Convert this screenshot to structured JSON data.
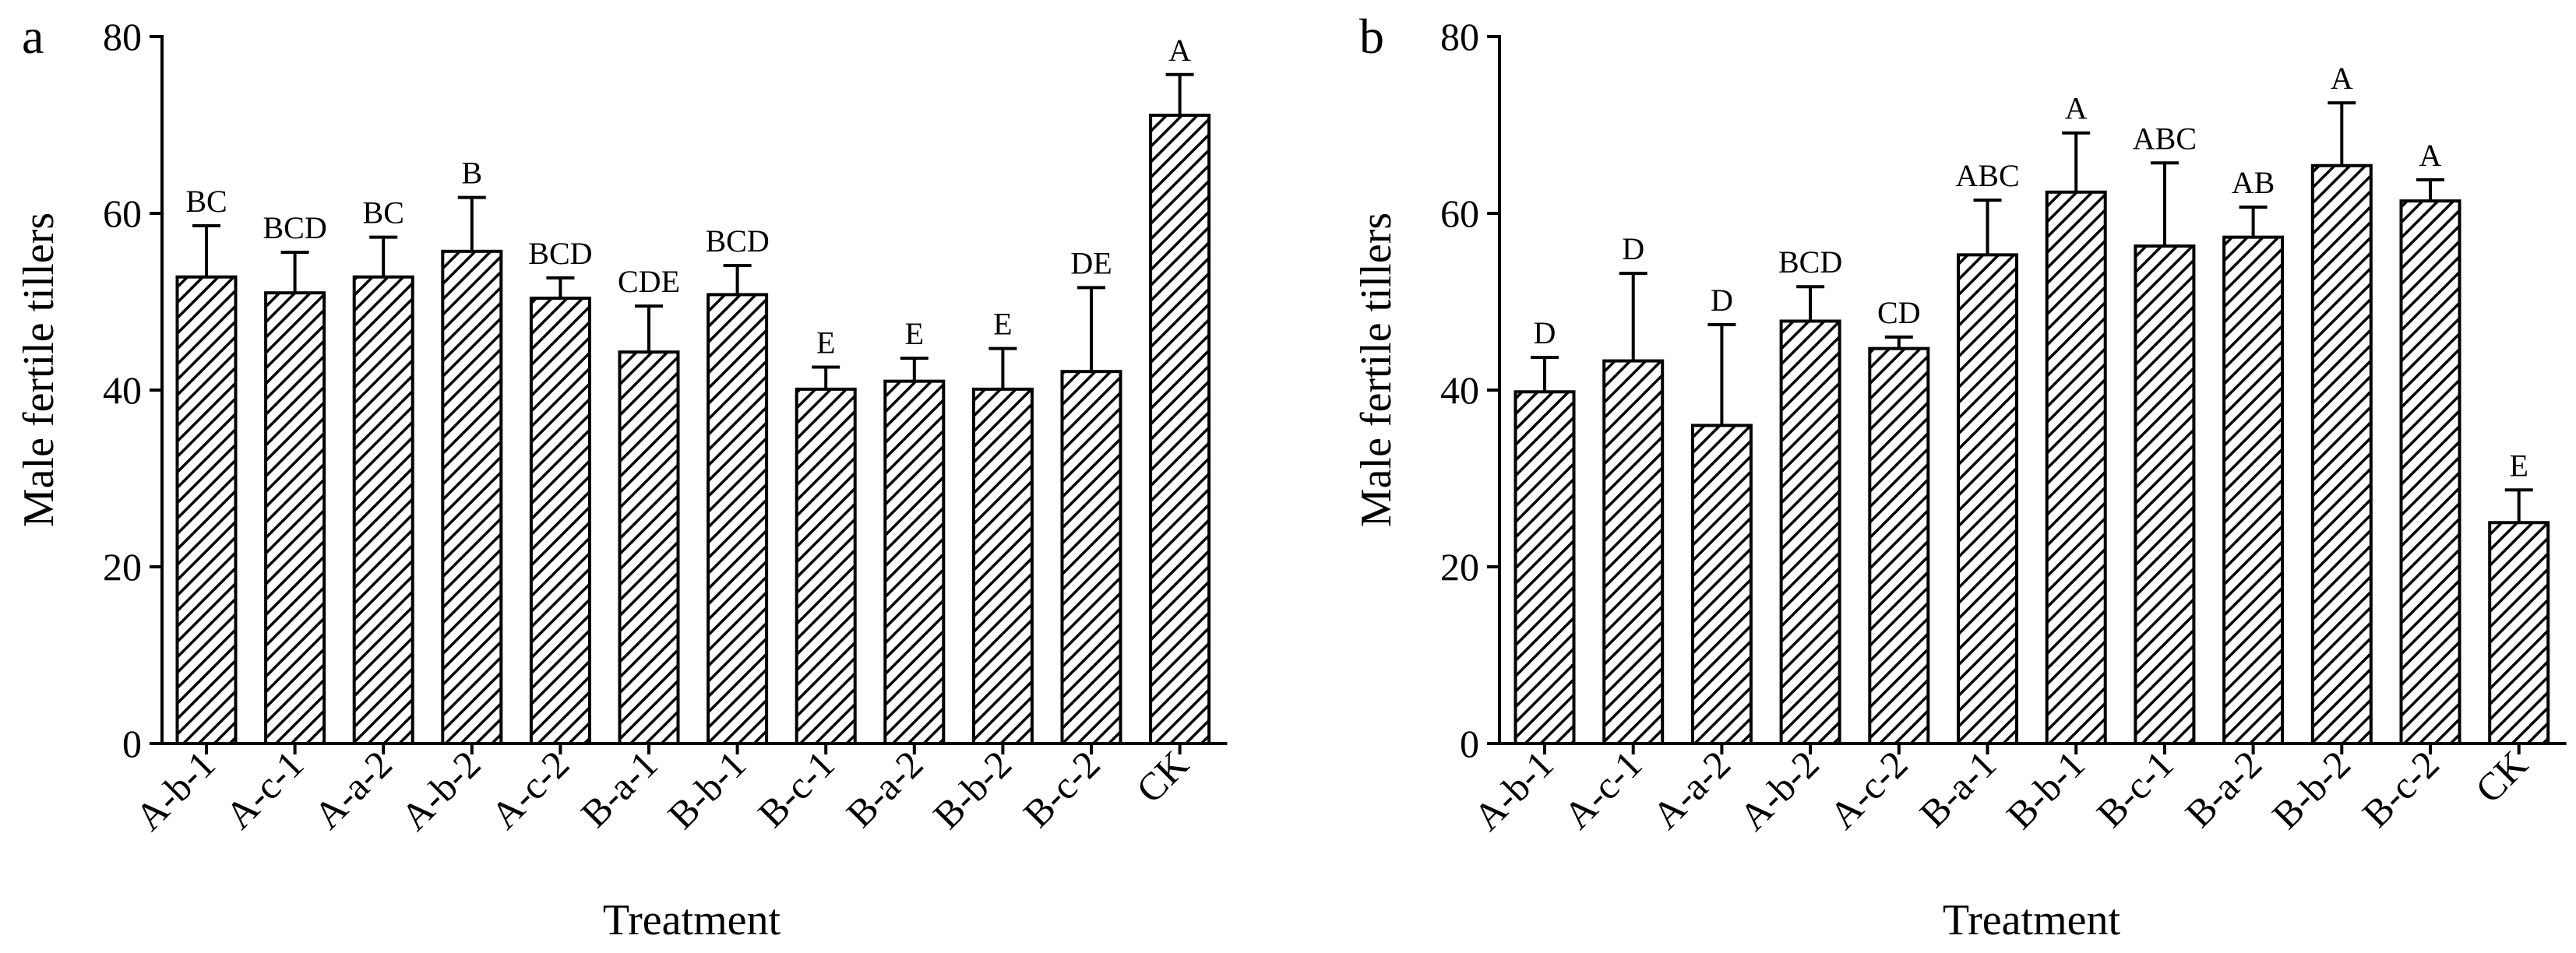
{
  "chart_data": [
    {
      "type": "bar",
      "panel_label": "a",
      "categories": [
        "A-b-1",
        "A-c-1",
        "A-a-2",
        "A-b-2",
        "A-c-2",
        "B-a-1",
        "B-b-1",
        "B-c-1",
        "B-a-2",
        "B-b-2",
        "B-c-2",
        "CK"
      ],
      "values": [
        52.8,
        51.0,
        52.8,
        55.7,
        50.4,
        44.3,
        50.8,
        40.1,
        41.0,
        40.1,
        42.1,
        71.1
      ],
      "errors": [
        5.8,
        4.6,
        4.5,
        6.1,
        2.3,
        5.2,
        3.3,
        2.5,
        2.6,
        4.6,
        9.5,
        4.6
      ],
      "significance": [
        "BC",
        "BCD",
        "BC",
        "B",
        "BCD",
        "CDE",
        "BCD",
        "E",
        "E",
        "E",
        "DE",
        "A"
      ],
      "xlabel": "Treatment",
      "ylabel": "Male fertile tillers",
      "ylim": [
        0,
        80
      ],
      "yticks": [
        "0",
        "20",
        "40",
        "60",
        "80"
      ],
      "fill_pattern": "diagonal-hatch",
      "grid": false,
      "legend": "none"
    },
    {
      "type": "bar",
      "panel_label": "b",
      "categories": [
        "A-b-1",
        "A-c-1",
        "A-a-2",
        "A-b-2",
        "A-c-2",
        "B-a-1",
        "B-b-1",
        "B-c-1",
        "B-a-2",
        "B-b-2",
        "B-c-2",
        "CK"
      ],
      "values": [
        39.8,
        43.3,
        36.0,
        47.8,
        44.7,
        55.3,
        62.4,
        56.3,
        57.3,
        65.4,
        61.4,
        25.0
      ],
      "errors": [
        3.9,
        9.9,
        11.4,
        3.9,
        1.3,
        6.2,
        6.7,
        9.4,
        3.4,
        7.1,
        2.4,
        3.7
      ],
      "significance": [
        "D",
        "D",
        "D",
        "BCD",
        "CD",
        "ABC",
        "A",
        "ABC",
        "AB",
        "A",
        "A",
        "E"
      ],
      "xlabel": "Treatment",
      "ylabel": "Male fertile tillers",
      "ylim": [
        0,
        80
      ],
      "yticks": [
        "0",
        "20",
        "40",
        "60",
        "80"
      ],
      "fill_pattern": "diagonal-hatch",
      "grid": false,
      "legend": "none"
    }
  ]
}
